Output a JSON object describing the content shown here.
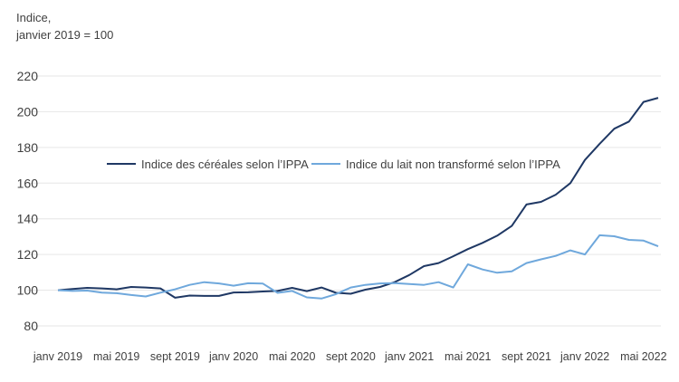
{
  "chart_data": {
    "type": "line",
    "ylabel_line1": "Indice,",
    "ylabel_line2": "janvier 2019 = 100",
    "ylim": [
      80,
      220
    ],
    "yticks": [
      80,
      100,
      120,
      140,
      160,
      180,
      200,
      220
    ],
    "grid": true,
    "legend_position": "middle-left",
    "x_tick_labels": [
      "janv 2019",
      "mai 2019",
      "sept 2019",
      "janv 2020",
      "mai 2020",
      "sept 2020",
      "janv 2021",
      "mai 2021",
      "sept 2021",
      "janv 2022",
      "mai 2022"
    ],
    "x_tick_step_months": 4,
    "series": [
      {
        "name": "Indice des céréales selon l’IPPA",
        "color": "#1f3864",
        "values": [
          100,
          100.7,
          101.3,
          101,
          100.5,
          101.8,
          101.5,
          101,
          95.8,
          97,
          96.8,
          96.8,
          98.7,
          98.8,
          99.3,
          99.6,
          101.3,
          99.5,
          101.5,
          98.5,
          98,
          100.3,
          101.8,
          104.5,
          108.5,
          113.5,
          115.2,
          119,
          123,
          126.5,
          130.5,
          136,
          148,
          149.5,
          153.5,
          160,
          173,
          182,
          190.5,
          194.5,
          205.5,
          207.8
        ]
      },
      {
        "name": "Indice du lait non transformé selon l’IPPA",
        "color": "#6fa8dc",
        "values": [
          100,
          99.6,
          99.8,
          98.6,
          98.3,
          97.3,
          96.5,
          98.6,
          100.5,
          103,
          104.5,
          103.8,
          102.5,
          103.9,
          103.7,
          98.5,
          99.6,
          96,
          95.3,
          97.8,
          101.5,
          103,
          103.8,
          104,
          103.5,
          103,
          104.5,
          101.5,
          114.5,
          111.6,
          109.8,
          110.6,
          115.2,
          117.3,
          119.2,
          122.3,
          120,
          130.8,
          130.2,
          128.2,
          127.8,
          124.6
        ]
      }
    ]
  }
}
